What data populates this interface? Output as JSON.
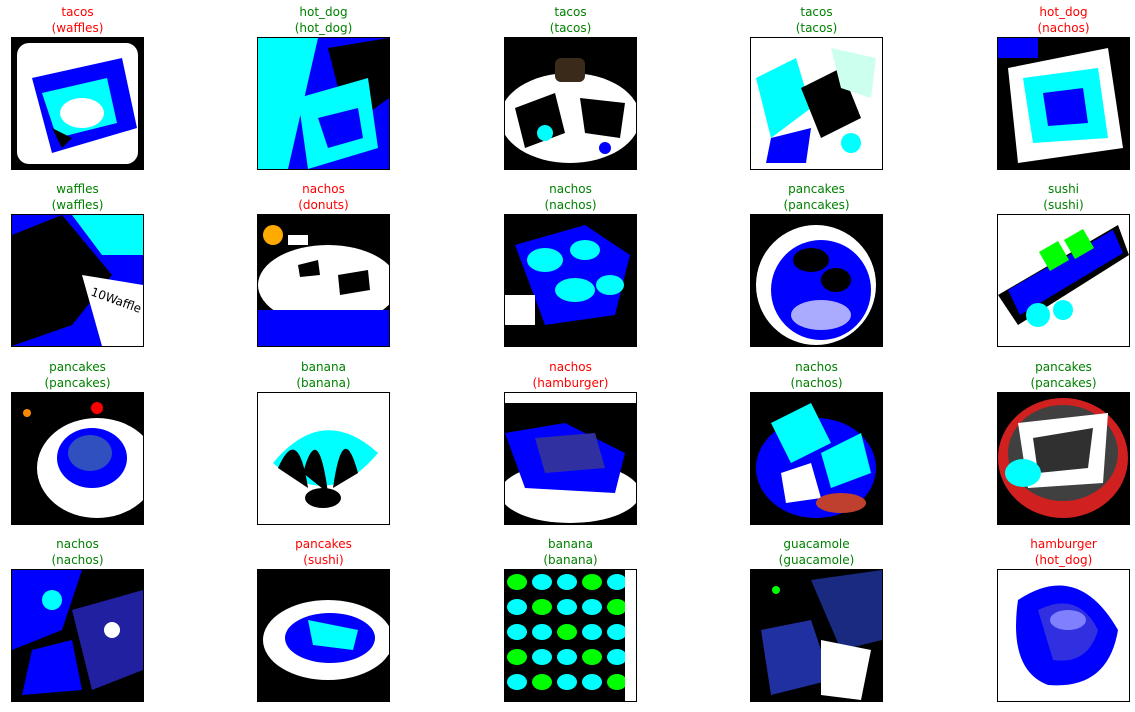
{
  "colors": {
    "correct": "#008000",
    "incorrect": "#ff0000"
  },
  "grid": {
    "columns": 5,
    "items": [
      {
        "predicted": "tacos",
        "actual": "(waffles)",
        "correct": false,
        "scene": "plate-with-cup-icon"
      },
      {
        "predicted": "hot_dog",
        "actual": "(hot_dog)",
        "correct": true,
        "scene": "hot-dog-icon"
      },
      {
        "predicted": "tacos",
        "actual": "(tacos)",
        "correct": true,
        "scene": "plate-with-bowl-icon"
      },
      {
        "predicted": "tacos",
        "actual": "(tacos)",
        "correct": true,
        "scene": "scattered-food-icon"
      },
      {
        "predicted": "hot_dog",
        "actual": "(nachos)",
        "correct": false,
        "scene": "dish-on-dark-icon"
      },
      {
        "predicted": "waffles",
        "actual": "(waffles)",
        "correct": true,
        "scene": "waffle-box-icon"
      },
      {
        "predicted": "nachos",
        "actual": "(donuts)",
        "correct": false,
        "scene": "donuts-plate-icon"
      },
      {
        "predicted": "nachos",
        "actual": "(nachos)",
        "correct": true,
        "scene": "nachos-pile-icon"
      },
      {
        "predicted": "pancakes",
        "actual": "(pancakes)",
        "correct": true,
        "scene": "pancake-plate-icon"
      },
      {
        "predicted": "sushi",
        "actual": "(sushi)",
        "correct": true,
        "scene": "sushi-roll-icon"
      },
      {
        "predicted": "pancakes",
        "actual": "(pancakes)",
        "correct": true,
        "scene": "pancake-stack-icon"
      },
      {
        "predicted": "banana",
        "actual": "(banana)",
        "correct": true,
        "scene": "banana-bunch-icon"
      },
      {
        "predicted": "nachos",
        "actual": "(hamburger)",
        "correct": false,
        "scene": "burger-plate-icon"
      },
      {
        "predicted": "nachos",
        "actual": "(nachos)",
        "correct": true,
        "scene": "nachos-plate-icon"
      },
      {
        "predicted": "pancakes",
        "actual": "(pancakes)",
        "correct": true,
        "scene": "pancake-red-plate-icon"
      },
      {
        "predicted": "nachos",
        "actual": "(nachos)",
        "correct": true,
        "scene": "nachos-dark-icon"
      },
      {
        "predicted": "pancakes",
        "actual": "(sushi)",
        "correct": false,
        "scene": "sushi-bowl-icon"
      },
      {
        "predicted": "banana",
        "actual": "(banana)",
        "correct": true,
        "scene": "banana-pattern-icon"
      },
      {
        "predicted": "guacamole",
        "actual": "(guacamole)",
        "correct": true,
        "scene": "guacamole-dark-icon"
      },
      {
        "predicted": "hamburger",
        "actual": "(hot_dog)",
        "correct": false,
        "scene": "blue-blob-icon"
      }
    ]
  }
}
